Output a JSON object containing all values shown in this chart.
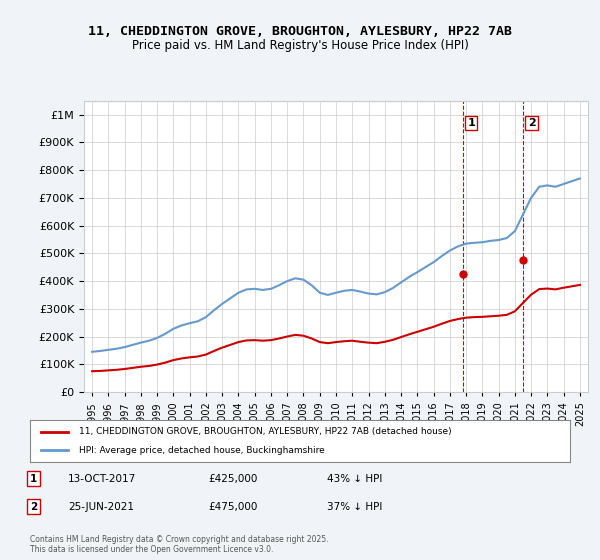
{
  "title": "11, CHEDDINGTON GROVE, BROUGHTON, AYLESBURY, HP22 7AB",
  "subtitle": "Price paid vs. HM Land Registry's House Price Index (HPI)",
  "legend_label_red": "11, CHEDDINGTON GROVE, BROUGHTON, AYLESBURY, HP22 7AB (detached house)",
  "legend_label_blue": "HPI: Average price, detached house, Buckinghamshire",
  "annotation1_label": "1",
  "annotation1_date": "13-OCT-2017",
  "annotation1_price": "£425,000",
  "annotation1_hpi": "43% ↓ HPI",
  "annotation1_year": 2017.79,
  "annotation1_value": 425000,
  "annotation2_label": "2",
  "annotation2_date": "25-JUN-2021",
  "annotation2_price": "£475,000",
  "annotation2_hpi": "37% ↓ HPI",
  "annotation2_year": 2021.49,
  "annotation2_value": 475000,
  "red_color": "#cc0000",
  "blue_color": "#6699cc",
  "vline_color": "#cc0000",
  "background_color": "#f0f4f8",
  "plot_bg_color": "#ffffff",
  "grid_color": "#cccccc",
  "ylim": [
    0,
    1050000
  ],
  "xlabel_start": 1995,
  "xlabel_end": 2025,
  "footer": "Contains HM Land Registry data © Crown copyright and database right 2025.\nThis data is licensed under the Open Government Licence v3.0.",
  "hpi_data": {
    "years": [
      1995,
      1995.5,
      1996,
      1996.5,
      1997,
      1997.5,
      1998,
      1998.5,
      1999,
      1999.5,
      2000,
      2000.5,
      2001,
      2001.5,
      2002,
      2002.5,
      2003,
      2003.5,
      2004,
      2004.5,
      2005,
      2005.5,
      2006,
      2006.5,
      2007,
      2007.5,
      2008,
      2008.5,
      2009,
      2009.5,
      2010,
      2010.5,
      2011,
      2011.5,
      2012,
      2012.5,
      2013,
      2013.5,
      2014,
      2014.5,
      2015,
      2015.5,
      2016,
      2016.5,
      2017,
      2017.5,
      2018,
      2018.5,
      2019,
      2019.5,
      2020,
      2020.5,
      2021,
      2021.5,
      2022,
      2022.5,
      2023,
      2023.5,
      2024,
      2024.5,
      2025
    ],
    "values": [
      145000,
      148000,
      152000,
      156000,
      162000,
      170000,
      178000,
      185000,
      195000,
      210000,
      228000,
      240000,
      248000,
      255000,
      270000,
      295000,
      318000,
      338000,
      358000,
      370000,
      372000,
      368000,
      372000,
      385000,
      400000,
      410000,
      405000,
      385000,
      358000,
      350000,
      358000,
      365000,
      368000,
      362000,
      355000,
      352000,
      360000,
      375000,
      395000,
      415000,
      432000,
      450000,
      468000,
      490000,
      510000,
      525000,
      535000,
      538000,
      540000,
      545000,
      548000,
      555000,
      580000,
      640000,
      700000,
      740000,
      745000,
      740000,
      750000,
      760000,
      770000
    ]
  },
  "property_data": {
    "years": [
      1995,
      1995.5,
      1996,
      1996.5,
      1997,
      1997.5,
      1998,
      1998.5,
      1999,
      1999.5,
      2000,
      2000.5,
      2001,
      2001.5,
      2002,
      2002.5,
      2003,
      2003.5,
      2004,
      2004.5,
      2005,
      2005.5,
      2006,
      2006.5,
      2007,
      2007.5,
      2008,
      2008.5,
      2009,
      2009.5,
      2010,
      2010.5,
      2011,
      2011.5,
      2012,
      2012.5,
      2013,
      2013.5,
      2014,
      2014.5,
      2015,
      2015.5,
      2016,
      2016.5,
      2017,
      2017.5,
      2018,
      2018.5,
      2019,
      2019.5,
      2020,
      2020.5,
      2021,
      2021.5,
      2022,
      2022.5,
      2023,
      2023.5,
      2024,
      2024.5,
      2025
    ],
    "values": [
      75000,
      76000,
      78000,
      80000,
      83000,
      87000,
      91000,
      94000,
      99000,
      106000,
      115000,
      121000,
      125000,
      128000,
      135000,
      148000,
      160000,
      170000,
      180000,
      186000,
      187000,
      185000,
      187000,
      193000,
      200000,
      206000,
      203000,
      193000,
      180000,
      176000,
      180000,
      183000,
      185000,
      181000,
      178000,
      176000,
      181000,
      188000,
      198000,
      208000,
      217000,
      226000,
      235000,
      246000,
      256000,
      263000,
      268000,
      270000,
      271000,
      273000,
      275000,
      278000,
      291000,
      321000,
      351000,
      371000,
      373000,
      370000,
      376000,
      381000,
      386000
    ]
  }
}
